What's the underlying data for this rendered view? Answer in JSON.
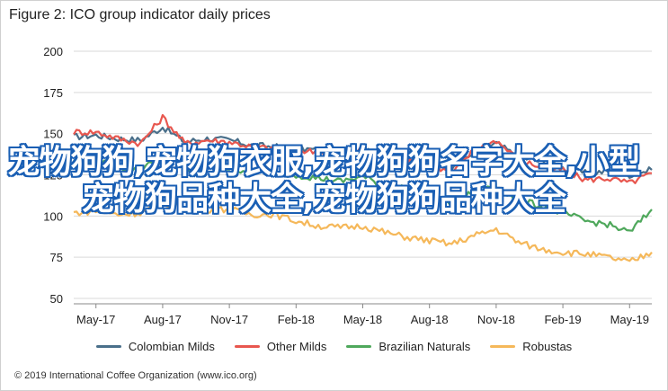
{
  "chart_data": {
    "type": "line",
    "title": "Figure 2: ICO group indicator daily prices",
    "ylim": [
      50,
      200
    ],
    "yticks": [
      50,
      75,
      100,
      125,
      150,
      175,
      200
    ],
    "xticks": [
      "May-17",
      "Aug-17",
      "Nov-17",
      "Feb-18",
      "May-18",
      "Aug-18",
      "Nov-18",
      "Feb-19",
      "May-19"
    ],
    "x": [
      "Apr-17",
      "May-17",
      "Jun-17",
      "Jul-17",
      "Aug-17",
      "Sep-17",
      "Oct-17",
      "Nov-17",
      "Dec-17",
      "Jan-18",
      "Feb-18",
      "Mar-18",
      "Apr-18",
      "May-18",
      "Jun-18",
      "Jul-18",
      "Aug-18",
      "Sep-18",
      "Oct-18",
      "Nov-18",
      "Dec-18",
      "Jan-19",
      "Feb-19",
      "Mar-19",
      "Apr-19",
      "May-19",
      "Jun-19"
    ],
    "series": [
      {
        "name": "Colombian Milds",
        "color": "#4a6f8a",
        "values": [
          148,
          149,
          147,
          146,
          154,
          145,
          147,
          146,
          143,
          142,
          141,
          140,
          139,
          141,
          136,
          135,
          133,
          128,
          138,
          144,
          136,
          133,
          129,
          126,
          127,
          125,
          128
        ]
      },
      {
        "name": "Other Milds",
        "color": "#e8574f",
        "values": [
          151,
          151,
          147,
          144,
          160,
          144,
          146,
          145,
          142,
          141,
          140,
          139,
          138,
          140,
          134,
          133,
          131,
          126,
          140,
          146,
          134,
          130,
          128,
          122,
          123,
          120,
          126
        ]
      },
      {
        "name": "Brazilian Naturals",
        "color": "#4fa85c",
        "values": [
          134,
          134,
          129,
          128,
          140,
          128,
          131,
          129,
          127,
          126,
          125,
          123,
          121,
          124,
          118,
          117,
          113,
          107,
          115,
          118,
          110,
          106,
          102,
          97,
          95,
          90,
          104
        ]
      },
      {
        "name": "Robustas",
        "color": "#f5b85a",
        "values": [
          102,
          103,
          101,
          102,
          108,
          105,
          104,
          104,
          101,
          101,
          97,
          94,
          93,
          94,
          90,
          87,
          85,
          83,
          88,
          92,
          84,
          80,
          78,
          77,
          75,
          72,
          78
        ]
      }
    ]
  },
  "legend": {
    "items": [
      "Colombian Milds",
      "Other Milds",
      "Brazilian Naturals",
      "Robustas"
    ]
  },
  "footer": "© 2019 International Coffee Organization (www.ico.org)",
  "overlay_text": "宠物狗狗,宠物狗衣服,宠物狗狗名字大全,小型宠物狗品种大全,宠物狗狗品种大全",
  "colors": {
    "grid": "#d9d9d9",
    "axis_text": "#222222",
    "overlay_outline": "#1a5fb4"
  }
}
